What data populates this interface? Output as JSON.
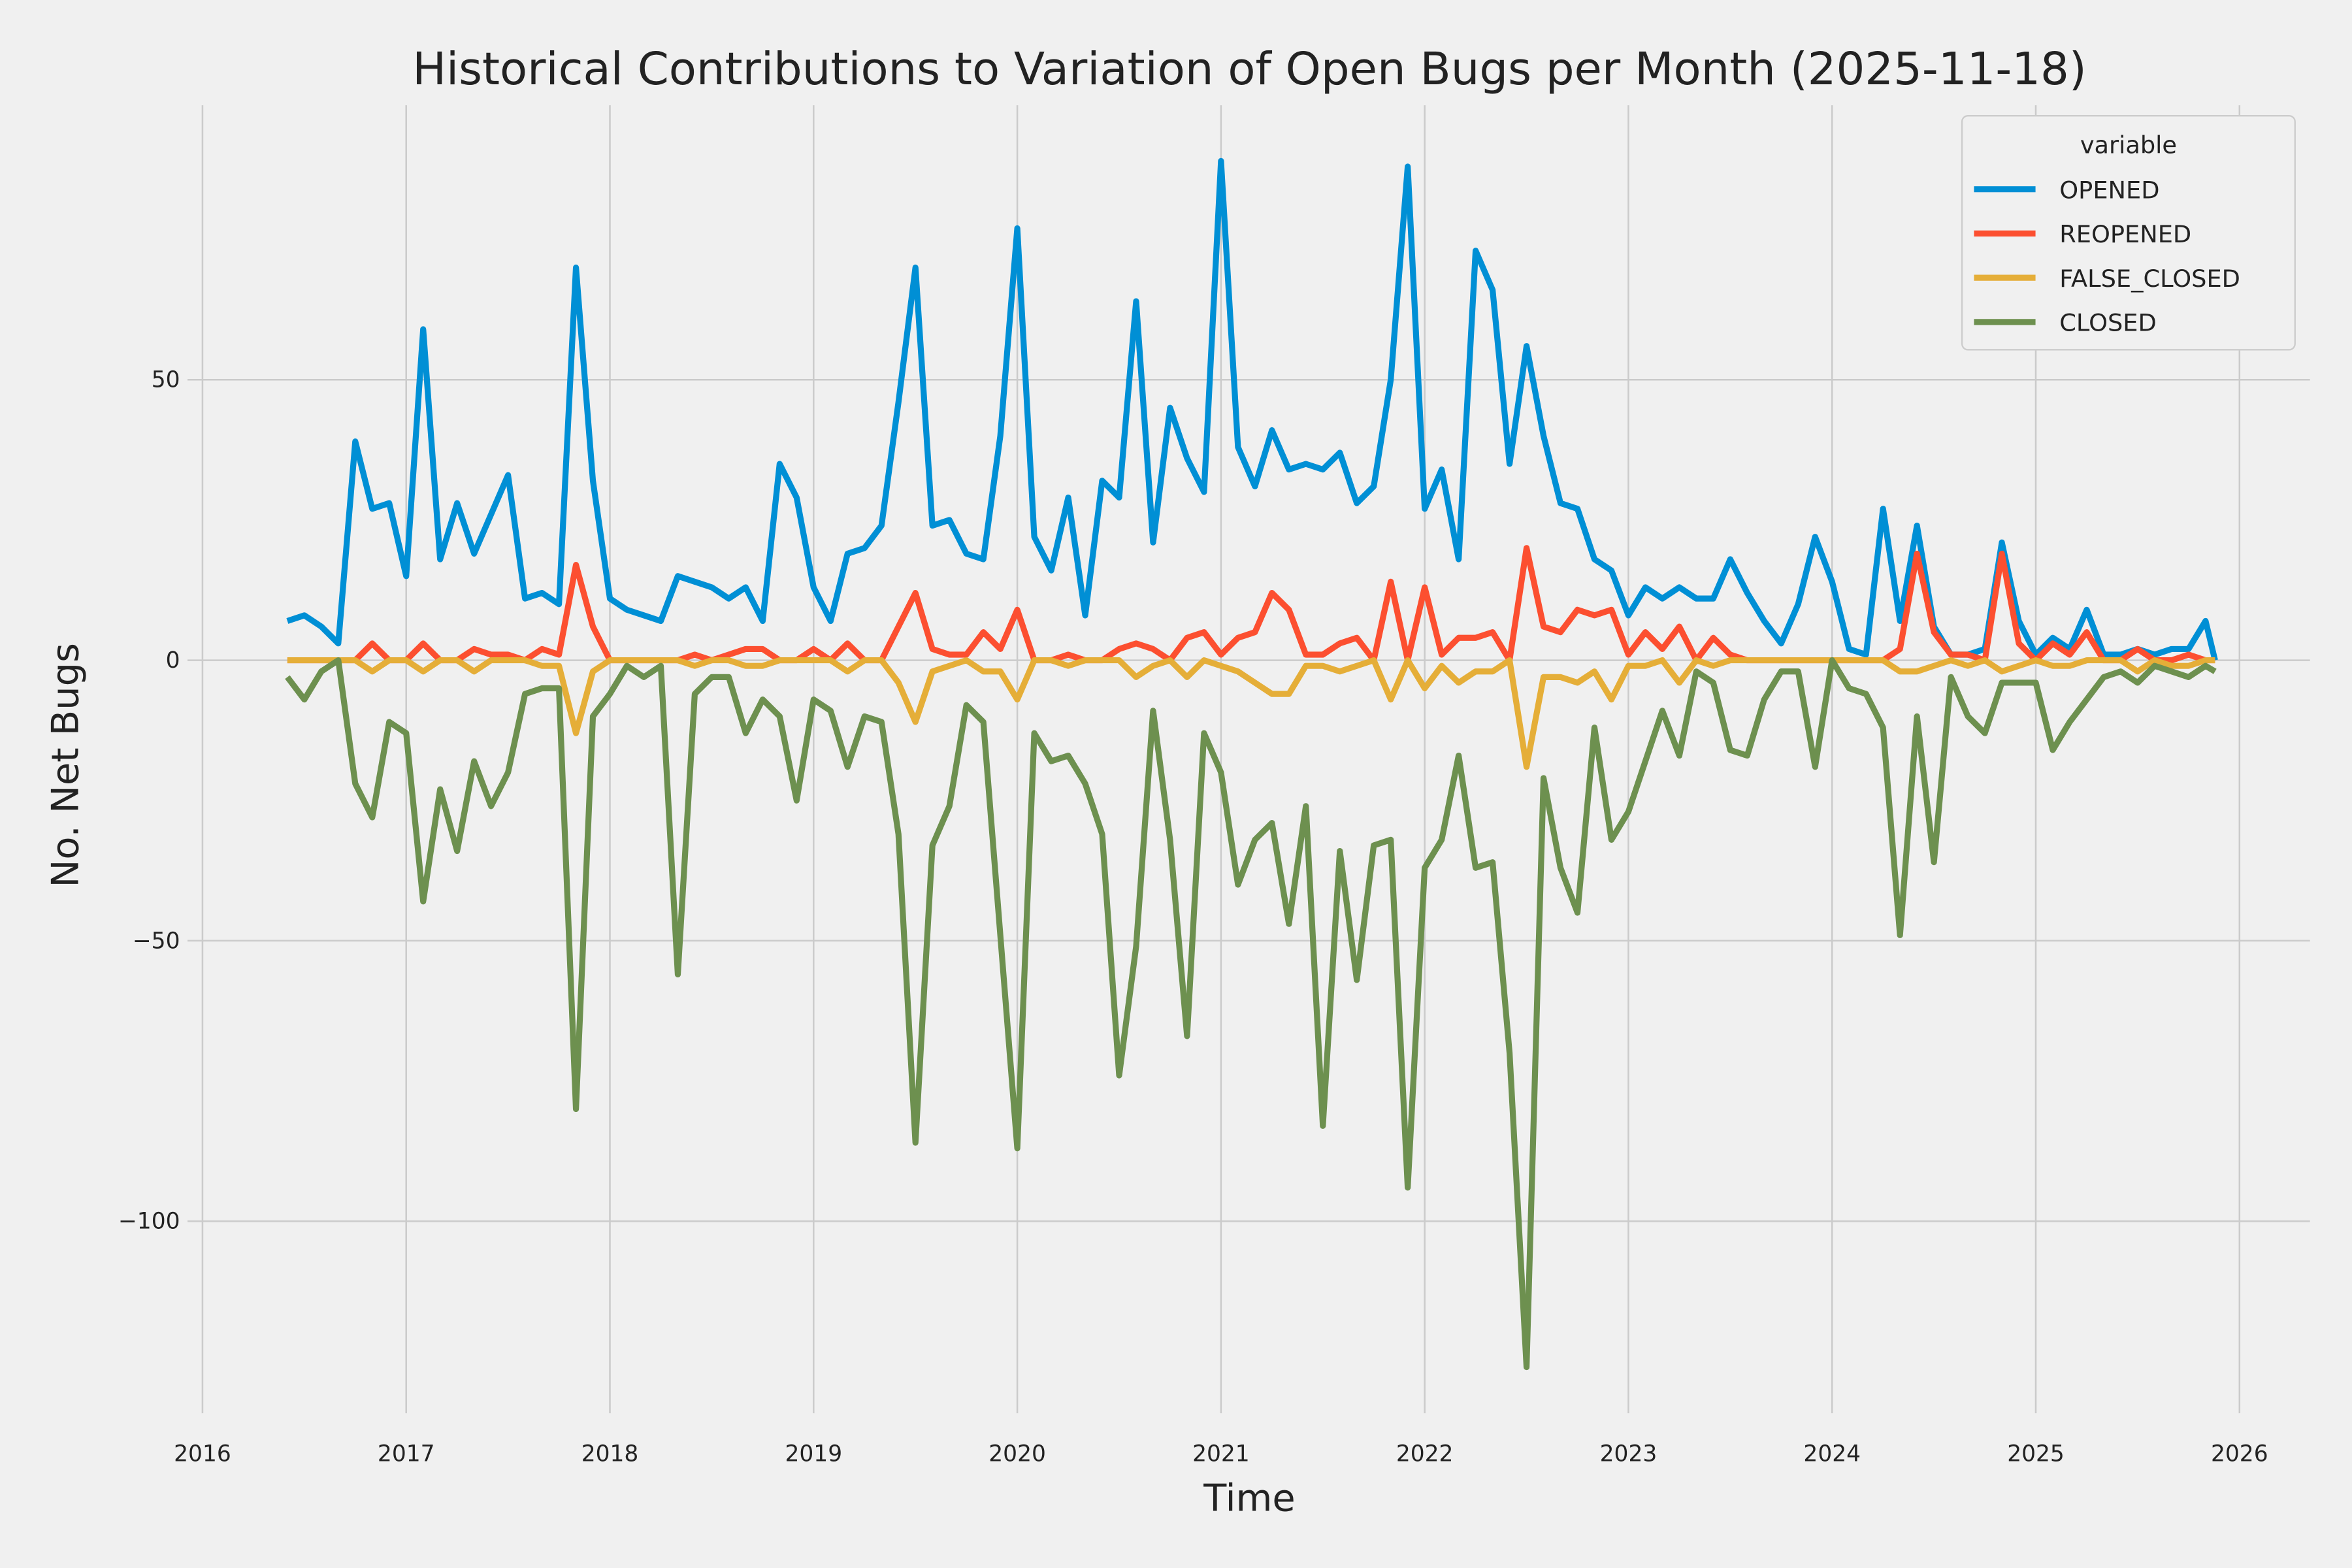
{
  "chart_data": {
    "type": "line",
    "title": "Historical Contributions to Variation of Open Bugs per Month (2025-11-18)",
    "xlabel": "Time",
    "ylabel": "No. Net Bugs",
    "xlim": [
      2015.93,
      2026.35
    ],
    "ylim": [
      -133,
      99
    ],
    "x_ticks": [
      "2016",
      "2017",
      "2018",
      "2019",
      "2020",
      "2021",
      "2022",
      "2023",
      "2024",
      "2025",
      "2026"
    ],
    "y_ticks": [
      -100,
      -50,
      0,
      50
    ],
    "y_tick_labels": [
      "−100",
      "−50",
      "0",
      "50"
    ],
    "grid": true,
    "legend": {
      "title": "variable",
      "placement": "top-right"
    },
    "x": [
      "2016-06",
      "2016-07",
      "2016-08",
      "2016-09",
      "2016-10",
      "2016-11",
      "2016-12",
      "2017-01",
      "2017-02",
      "2017-03",
      "2017-04",
      "2017-05",
      "2017-06",
      "2017-07",
      "2017-08",
      "2017-09",
      "2017-10",
      "2017-11",
      "2017-12",
      "2018-01",
      "2018-02",
      "2018-03",
      "2018-04",
      "2018-05",
      "2018-06",
      "2018-07",
      "2018-08",
      "2018-09",
      "2018-10",
      "2018-11",
      "2018-12",
      "2019-01",
      "2019-02",
      "2019-03",
      "2019-04",
      "2019-05",
      "2019-06",
      "2019-07",
      "2019-08",
      "2019-09",
      "2019-10",
      "2019-11",
      "2019-12",
      "2020-01",
      "2020-02",
      "2020-03",
      "2020-04",
      "2020-05",
      "2020-06",
      "2020-07",
      "2020-08",
      "2020-09",
      "2020-10",
      "2020-11",
      "2020-12",
      "2021-01",
      "2021-02",
      "2021-03",
      "2021-04",
      "2021-05",
      "2021-06",
      "2021-07",
      "2021-08",
      "2021-09",
      "2021-10",
      "2021-11",
      "2021-12",
      "2022-01",
      "2022-02",
      "2022-03",
      "2022-04",
      "2022-05",
      "2022-06",
      "2022-07",
      "2022-08",
      "2022-09",
      "2022-10",
      "2022-11",
      "2022-12",
      "2023-01",
      "2023-02",
      "2023-03",
      "2023-04",
      "2023-05",
      "2023-06",
      "2023-07",
      "2023-08",
      "2023-09",
      "2023-10",
      "2023-11",
      "2023-12",
      "2024-01",
      "2024-02",
      "2024-03",
      "2024-04",
      "2024-05",
      "2024-06",
      "2024-07",
      "2024-08",
      "2024-09",
      "2024-10",
      "2024-11",
      "2024-12",
      "2025-01",
      "2025-02",
      "2025-03",
      "2025-04",
      "2025-05",
      "2025-06",
      "2025-07",
      "2025-08",
      "2025-09",
      "2025-10",
      "2025-11",
      "2025-11-18"
    ],
    "series": [
      {
        "name": "OPENED",
        "color": "#008fd5",
        "values": [
          7,
          8,
          6,
          3,
          39,
          27,
          28,
          15,
          59,
          18,
          28,
          19,
          26,
          33,
          11,
          12,
          10,
          70,
          32,
          11,
          9,
          8,
          7,
          15,
          14,
          13,
          11,
          13,
          7,
          35,
          29,
          13,
          7,
          19,
          20,
          24,
          46,
          70,
          24,
          25,
          19,
          18,
          40,
          77,
          22,
          16,
          29,
          8,
          32,
          29,
          64,
          21,
          45,
          36,
          30,
          89,
          38,
          31,
          41,
          34,
          35,
          34,
          37,
          28,
          31,
          50,
          88,
          27,
          34,
          18,
          73,
          66,
          35,
          56,
          40,
          28,
          27,
          18,
          16,
          8,
          13,
          11,
          13,
          11,
          11,
          18,
          12,
          7,
          3,
          10,
          22,
          14,
          2,
          1,
          27,
          7,
          24,
          6,
          1,
          1,
          2,
          21,
          7,
          1,
          4,
          2,
          9,
          1,
          1,
          2,
          1,
          2,
          2,
          7,
          0
        ]
      },
      {
        "name": "REOPENED",
        "color": "#fc4f30",
        "values": [
          0,
          0,
          0,
          0,
          0,
          3,
          0,
          0,
          3,
          0,
          0,
          2,
          1,
          1,
          0,
          2,
          1,
          17,
          6,
          0,
          0,
          0,
          0,
          0,
          1,
          0,
          1,
          2,
          2,
          0,
          0,
          2,
          0,
          3,
          0,
          0,
          6,
          12,
          2,
          1,
          1,
          5,
          2,
          9,
          0,
          0,
          1,
          0,
          0,
          2,
          3,
          2,
          0,
          4,
          5,
          1,
          4,
          5,
          12,
          9,
          1,
          1,
          3,
          4,
          0,
          14,
          0,
          13,
          1,
          4,
          4,
          5,
          0,
          20,
          6,
          5,
          9,
          8,
          9,
          1,
          5,
          2,
          6,
          0,
          4,
          1,
          0,
          0,
          0,
          0,
          0,
          0,
          0,
          0,
          0,
          2,
          19,
          5,
          1,
          1,
          0,
          19,
          3,
          0,
          3,
          1,
          5,
          0,
          0,
          2,
          0,
          0,
          1,
          0,
          0
        ]
      },
      {
        "name": "FALSE_CLOSED",
        "color": "#e5ae38",
        "values": [
          0,
          0,
          0,
          0,
          0,
          -2,
          0,
          0,
          -2,
          0,
          0,
          -2,
          0,
          0,
          0,
          -1,
          -1,
          -13,
          -2,
          0,
          0,
          0,
          0,
          0,
          -1,
          0,
          0,
          -1,
          -1,
          0,
          0,
          0,
          0,
          -2,
          0,
          0,
          -4,
          -11,
          -2,
          -1,
          0,
          -2,
          -2,
          -7,
          0,
          0,
          -1,
          0,
          0,
          0,
          -3,
          -1,
          0,
          -3,
          0,
          -1,
          -2,
          -4,
          -6,
          -6,
          -1,
          -1,
          -2,
          -1,
          0,
          -7,
          0,
          -5,
          -1,
          -4,
          -2,
          -2,
          0,
          -19,
          -3,
          -3,
          -4,
          -2,
          -7,
          -1,
          -1,
          0,
          -4,
          0,
          -1,
          0,
          0,
          0,
          0,
          0,
          0,
          0,
          0,
          0,
          0,
          -2,
          -2,
          -1,
          0,
          -1,
          0,
          -2,
          -1,
          0,
          -1,
          -1,
          0,
          0,
          0,
          -2,
          0,
          -1,
          -1,
          0,
          0
        ]
      },
      {
        "name": "CLOSED",
        "color": "#6d904f",
        "values": [
          -3,
          -7,
          -2,
          0,
          -22,
          -28,
          -11,
          -13,
          -43,
          -23,
          -34,
          -18,
          -26,
          -20,
          -6,
          -5,
          -5,
          -80,
          -10,
          -6,
          -1,
          -3,
          -1,
          -56,
          -6,
          -3,
          -3,
          -13,
          -7,
          -10,
          -25,
          -7,
          -9,
          -19,
          -10,
          -11,
          -31,
          -86,
          -33,
          -26,
          -8,
          -11,
          -49,
          -87,
          -13,
          -18,
          -17,
          -22,
          -31,
          -74,
          -51,
          -9,
          -32,
          -67,
          -13,
          -20,
          -40,
          -32,
          -29,
          -47,
          -26,
          -83,
          -34,
          -57,
          -33,
          -32,
          -94,
          -37,
          -32,
          -17,
          -37,
          -36,
          -70,
          -126,
          -21,
          -37,
          -45,
          -12,
          -32,
          -27,
          -18,
          -9,
          -17,
          -2,
          -4,
          -16,
          -17,
          -7,
          -2,
          -2,
          -19,
          0,
          -5,
          -6,
          -12,
          -49,
          -10,
          -36,
          -3,
          -10,
          -13,
          -4,
          -4,
          -4,
          -16,
          -11,
          -7,
          -3,
          -2,
          -4,
          -1,
          -2,
          -3,
          -1,
          -2
        ]
      }
    ]
  }
}
